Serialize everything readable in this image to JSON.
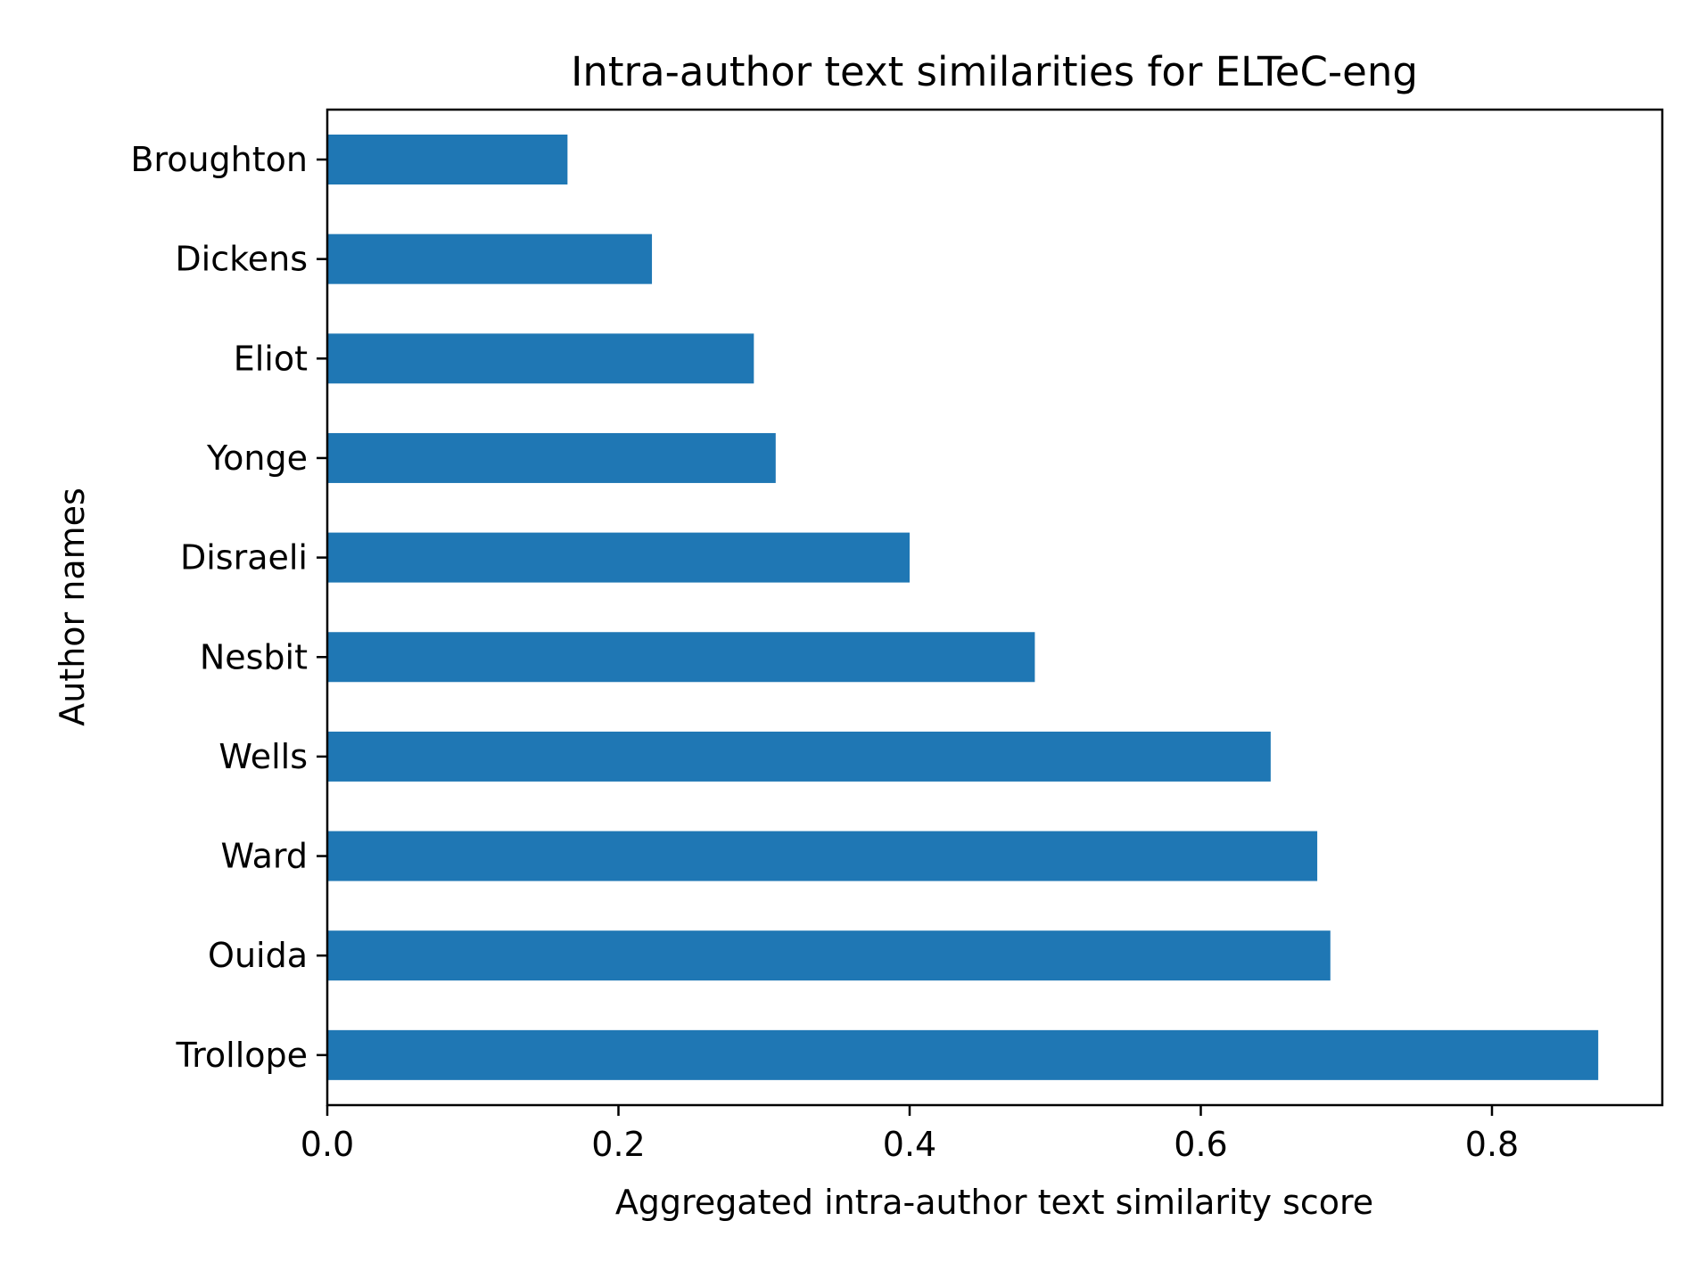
{
  "chart_data": {
    "type": "bar",
    "orientation": "horizontal",
    "title": "Intra-author text similarities for ELTeC-eng",
    "xlabel": "Aggregated intra-author text similarity score",
    "ylabel": "Author names",
    "categories": [
      "Broughton",
      "Dickens",
      "Eliot",
      "Yonge",
      "Disraeli",
      "Nesbit",
      "Wells",
      "Ward",
      "Ouida",
      "Trollope"
    ],
    "values": [
      0.165,
      0.223,
      0.293,
      0.308,
      0.4,
      0.486,
      0.648,
      0.68,
      0.689,
      0.873
    ],
    "xlim": [
      0,
      0.917
    ],
    "xticks": [
      0.0,
      0.2,
      0.4,
      0.6,
      0.8
    ],
    "xtick_labels": [
      "0.0",
      "0.2",
      "0.4",
      "0.6",
      "0.8"
    ],
    "grid": false,
    "bar_color": "#1f77b4"
  }
}
